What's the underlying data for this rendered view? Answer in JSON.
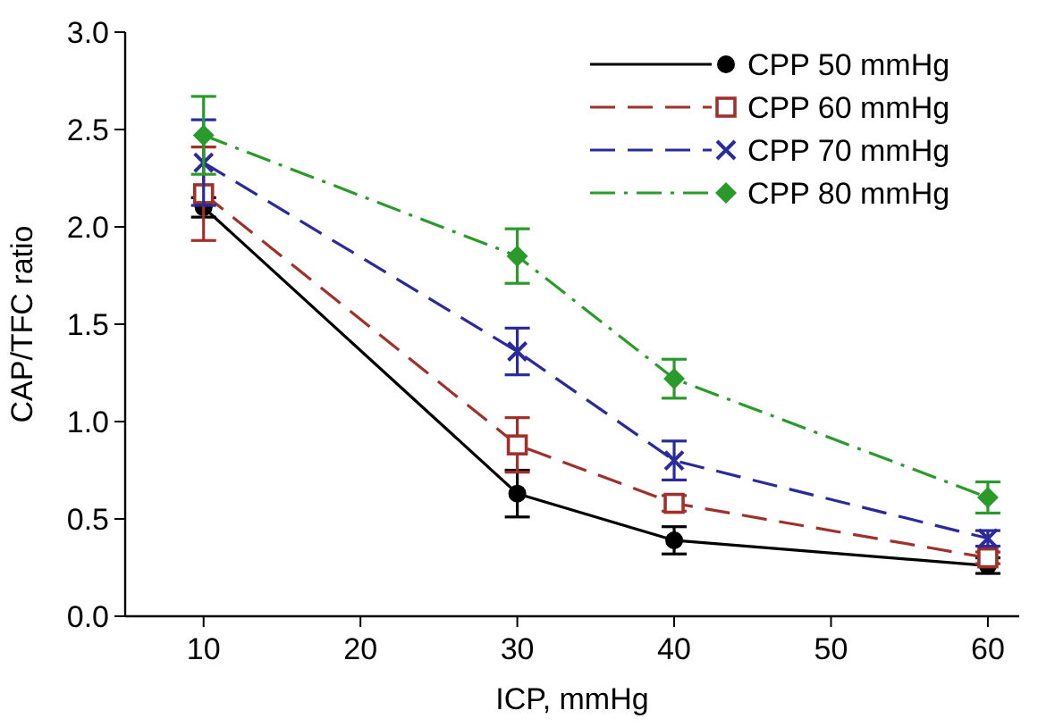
{
  "chart_data": {
    "type": "line",
    "xlabel": "ICP, mmHg",
    "ylabel": "CAP/TFC ratio",
    "x": [
      10,
      30,
      40,
      60
    ],
    "xlim": [
      5,
      62
    ],
    "xticks": [
      10,
      20,
      30,
      40,
      50,
      60
    ],
    "ylim": [
      0,
      3
    ],
    "yticks": [
      {
        "value": 0,
        "label": "0.0"
      },
      {
        "value": 0.5,
        "label": "0.5"
      },
      {
        "value": 1,
        "label": "1.0"
      },
      {
        "value": 1.5,
        "label": "1.5"
      },
      {
        "value": 2,
        "label": "2.0"
      },
      {
        "value": 2.5,
        "label": "2.5"
      },
      {
        "value": 3,
        "label": "3.0"
      }
    ],
    "legend": "top right",
    "grid": false,
    "series": [
      {
        "name": "CPP 50 mmHg",
        "color": "#000000",
        "values": [
          2.1,
          0.63,
          0.39,
          0.26
        ],
        "errors": [
          0.05,
          0.12,
          0.07,
          0.04
        ],
        "marker": "circle",
        "line_style": "solid"
      },
      {
        "name": "CPP 60 mmHg",
        "color": "#a0302a",
        "values": [
          2.17,
          0.88,
          0.58,
          0.3
        ],
        "errors": [
          0.24,
          0.14,
          0.04,
          0.03
        ],
        "marker": "square",
        "line_style": "dashed"
      },
      {
        "name": "CPP 70 mmHg",
        "color": "#2a2a9a",
        "values": [
          2.33,
          1.36,
          0.8,
          0.4
        ],
        "errors": [
          0.22,
          0.12,
          0.1,
          0.04
        ],
        "marker": "cross",
        "line_style": "dashed"
      },
      {
        "name": "CPP 80 mmHg",
        "color": "#2a9a2a",
        "values": [
          2.47,
          1.85,
          1.22,
          0.61
        ],
        "errors": [
          0.2,
          0.14,
          0.1,
          0.08
        ],
        "marker": "diamond",
        "line_style": "dashdot"
      }
    ]
  }
}
